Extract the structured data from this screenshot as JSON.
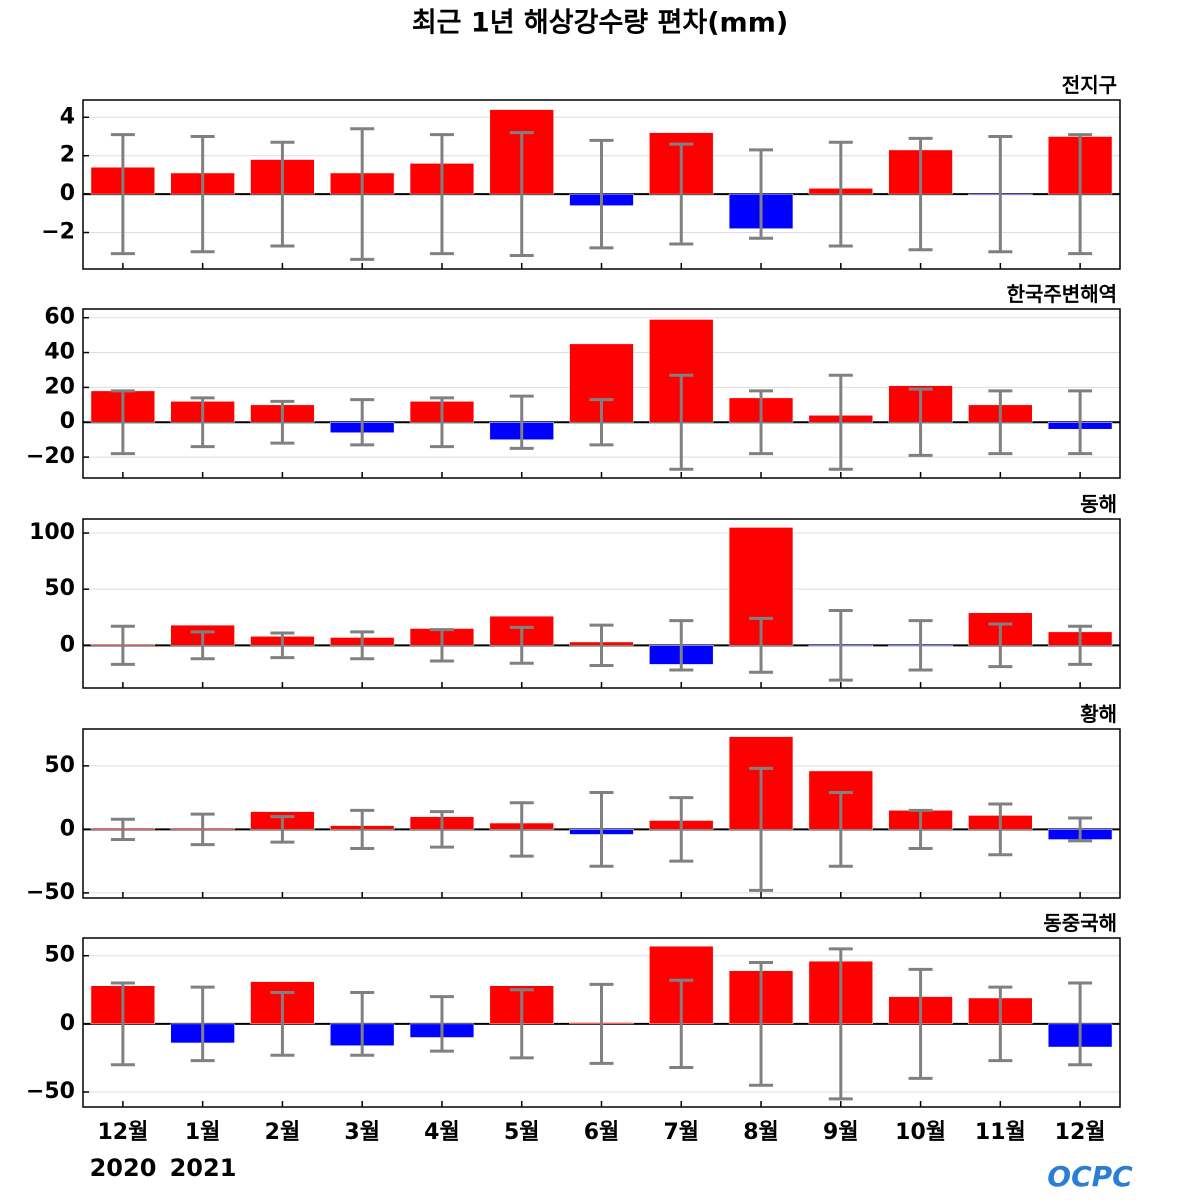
{
  "title": "최근 1년 해상강수량 편차(mm)",
  "categories": [
    "12월",
    "1월",
    "2월",
    "3월",
    "4월",
    "5월",
    "6월",
    "7월",
    "8월",
    "9월",
    "10월",
    "11월",
    "12월"
  ],
  "year_labels": [
    "2020",
    "2021"
  ],
  "logo": "OCPC",
  "colors": {
    "positive": "#ff0000",
    "negative": "#0000ff",
    "error": "#808080"
  },
  "grid": true,
  "chart_data": [
    {
      "type": "bar",
      "title": "전지구",
      "values": [
        1.4,
        1.1,
        1.8,
        1.1,
        1.6,
        4.4,
        -0.6,
        3.2,
        -1.8,
        0.3,
        2.3,
        -0.05,
        3.0
      ],
      "errors": [
        3.1,
        3.0,
        2.7,
        3.4,
        3.1,
        3.2,
        2.8,
        2.6,
        2.3,
        2.7,
        2.9,
        3.0,
        3.1
      ],
      "ylim": [
        -3.9,
        4.9
      ],
      "yticks": [
        {
          "value": -2,
          "label": "−2"
        },
        0,
        2,
        4
      ]
    },
    {
      "type": "bar",
      "title": "한국주변해역",
      "values": [
        18,
        12,
        10,
        -6,
        12,
        -10,
        45,
        59,
        14,
        4,
        21,
        10,
        -4
      ],
      "errors": [
        18,
        14,
        12,
        13,
        14,
        15,
        13,
        27,
        18,
        27,
        19,
        18,
        18
      ],
      "ylim": [
        -32,
        65
      ],
      "yticks": [
        {
          "value": -20,
          "label": "−20"
        },
        0,
        20,
        40,
        60
      ]
    },
    {
      "type": "bar",
      "title": "동해",
      "values": [
        1,
        18,
        8,
        7,
        15,
        26,
        3,
        -17,
        105,
        -1,
        -1,
        29,
        12
      ],
      "errors": [
        17,
        12,
        11,
        12,
        14,
        16,
        18,
        22,
        24,
        31,
        22,
        19,
        17
      ],
      "ylim": [
        -38,
        112.5
      ],
      "yticks": [
        0,
        50,
        100
      ]
    },
    {
      "type": "bar",
      "title": "황해",
      "values": [
        1,
        1,
        14,
        3,
        10,
        5,
        -4,
        7,
        73,
        46,
        15,
        11,
        -8
      ],
      "errors": [
        8,
        12,
        10,
        15,
        14,
        21,
        29,
        25,
        48,
        29,
        15,
        20,
        9
      ],
      "ylim": [
        -54,
        79
      ],
      "yticks": [
        {
          "value": -50,
          "label": "−50"
        },
        0,
        50
      ]
    },
    {
      "type": "bar",
      "title": "동중국해",
      "values": [
        28,
        -14,
        31,
        -16,
        -10,
        28,
        1,
        57,
        39,
        46,
        20,
        19,
        -17
      ],
      "errors": [
        30,
        27,
        23,
        23,
        20,
        25,
        29,
        32,
        45,
        55,
        40,
        27,
        30
      ],
      "ylim": [
        -61,
        63
      ],
      "yticks": [
        {
          "value": -50,
          "label": "−50"
        },
        0,
        50
      ]
    }
  ]
}
